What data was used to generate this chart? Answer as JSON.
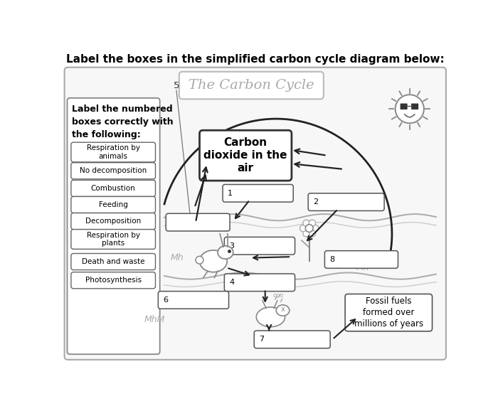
{
  "title_text": "Label the boxes in the simplified carbon cycle diagram below:",
  "diagram_title": "The Carbon Cycle",
  "background_color": "#ffffff",
  "left_instruction": "Label the numbered\nboxes correctly with\nthe following:",
  "left_panel_labels": [
    "Respiration by\nanimals",
    "No decomposition",
    "Combustion",
    "Feeding",
    "Decomposition",
    "Respiration by\nplants",
    "Death and waste",
    "Photosynthesis"
  ],
  "center_box_text": "Carbon\ndioxide in the\nair",
  "fossil_fuel_text": "Fossil fuels\nformed over\nmillions of years",
  "ac": "#222222",
  "bc": "#555555",
  "gc": "#aaaaaa"
}
